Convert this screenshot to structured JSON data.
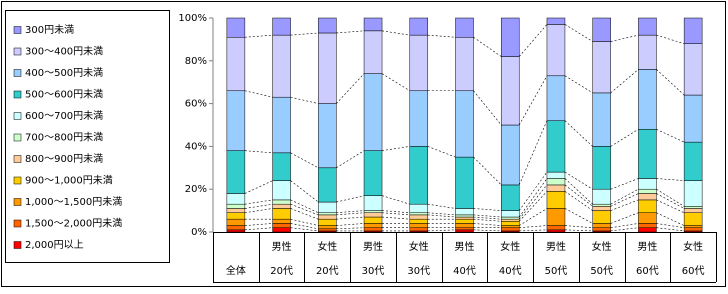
{
  "chart_data": {
    "type": "stacked-bar-100",
    "categories": [
      [
        "全体"
      ],
      [
        "男性",
        "20代"
      ],
      [
        "女性",
        "20代"
      ],
      [
        "男性",
        "30代"
      ],
      [
        "女性",
        "30代"
      ],
      [
        "男性",
        "40代"
      ],
      [
        "女性",
        "40代"
      ],
      [
        "男性",
        "50代"
      ],
      [
        "女性",
        "50代"
      ],
      [
        "男性",
        "60代"
      ],
      [
        "女性",
        "60代"
      ]
    ],
    "series": [
      {
        "name": "300円未満",
        "color": "#9999ff",
        "values": [
          9,
          8,
          7,
          6,
          8,
          9,
          18,
          3,
          11,
          8,
          12
        ]
      },
      {
        "name": "300～400円未満",
        "color": "#ccccff",
        "values": [
          25,
          29,
          33,
          20,
          26,
          25,
          32,
          24,
          24,
          16,
          24
        ]
      },
      {
        "name": "400～500円未満",
        "color": "#99ccff",
        "values": [
          28,
          26,
          30,
          36,
          26,
          31,
          28,
          21,
          25,
          28,
          22
        ]
      },
      {
        "name": "500～600円未満",
        "color": "#33cccc",
        "values": [
          20,
          13,
          16,
          21,
          27,
          24,
          12,
          24,
          20,
          23,
          18
        ]
      },
      {
        "name": "600～700円未満",
        "color": "#ccffff",
        "values": [
          5,
          9,
          5,
          7,
          4,
          3,
          3,
          3,
          7,
          5,
          12
        ]
      },
      {
        "name": "700～800円未満",
        "color": "#ccffcc",
        "values": [
          2,
          2,
          1,
          1,
          1,
          1,
          1,
          3,
          1,
          2,
          1
        ]
      },
      {
        "name": "800～900円未満",
        "color": "#ffcc99",
        "values": [
          2,
          2,
          2,
          2,
          2,
          1,
          1,
          3,
          2,
          3,
          2
        ]
      },
      {
        "name": "900～1,000円未満",
        "color": "#ffcc00",
        "values": [
          3,
          5,
          3,
          3,
          2,
          2,
          2,
          8,
          6,
          6,
          6
        ]
      },
      {
        "name": "1,000～1,500円未満",
        "color": "#ff9900",
        "values": [
          3,
          2,
          1.5,
          2,
          2,
          2,
          1,
          8,
          2,
          5,
          1
        ]
      },
      {
        "name": "1,500～2,000円未満",
        "color": "#ff6600",
        "values": [
          2,
          2,
          1,
          1.5,
          1.5,
          1,
          1.5,
          2,
          1.5,
          2,
          1.5
        ]
      },
      {
        "name": "2,000円以上",
        "color": "#ff0000",
        "values": [
          1,
          2,
          0.5,
          0.5,
          0.5,
          1,
          0.5,
          1,
          0.5,
          2,
          0.5
        ]
      }
    ],
    "ylim": [
      0,
      100
    ],
    "yticks": [
      {
        "value": 0,
        "label": "0%"
      },
      {
        "value": 20,
        "label": "20%"
      },
      {
        "value": 40,
        "label": "40%"
      },
      {
        "value": 60,
        "label": "60%"
      },
      {
        "value": 80,
        "label": "80%"
      },
      {
        "value": 100,
        "label": "100%"
      }
    ]
  }
}
